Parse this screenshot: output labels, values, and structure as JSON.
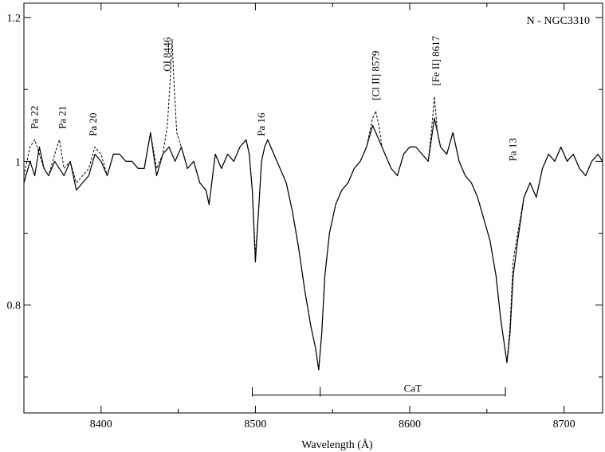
{
  "chart_data": {
    "type": "line",
    "title": "",
    "panel_label": "N - NGC3310",
    "xlabel": "Wavelength  (Å)",
    "ylabel": "",
    "xlim": [
      8350,
      8725
    ],
    "ylim": [
      0.65,
      1.22
    ],
    "x_ticks": [
      8400,
      8500,
      8600,
      8700
    ],
    "y_ticks": [
      {
        "value": 0.8,
        "label": "0.8"
      },
      {
        "value": 1.0,
        "label": "1"
      },
      {
        "value": 1.2,
        "label": "1.2"
      }
    ],
    "grid": false,
    "series": [
      {
        "style": "solid",
        "x": [
          8350,
          8354,
          8357,
          8360,
          8363,
          8366,
          8370,
          8373,
          8376,
          8380,
          8384,
          8388,
          8392,
          8396,
          8400,
          8404,
          8408,
          8412,
          8416,
          8420,
          8424,
          8428,
          8432,
          8436,
          8440,
          8444,
          8448,
          8452,
          8456,
          8460,
          8464,
          8468,
          8470,
          8474,
          8478,
          8482,
          8486,
          8490,
          8494,
          8496,
          8498,
          8500,
          8502,
          8504,
          8506,
          8508,
          8512,
          8516,
          8520,
          8524,
          8528,
          8532,
          8536,
          8539,
          8541,
          8543,
          8545,
          8548,
          8552,
          8556,
          8560,
          8564,
          8568,
          8572,
          8576,
          8580,
          8584,
          8588,
          8592,
          8596,
          8600,
          8604,
          8608,
          8612,
          8616,
          8620,
          8624,
          8628,
          8632,
          8636,
          8640,
          8644,
          8648,
          8652,
          8656,
          8659,
          8661,
          8663,
          8665,
          8667,
          8670,
          8674,
          8678,
          8682,
          8686,
          8690,
          8694,
          8698,
          8702,
          8706,
          8710,
          8714,
          8718,
          8722,
          8725
        ],
        "y": [
          0.97,
          1.0,
          0.98,
          1.02,
          0.99,
          0.98,
          1.0,
          0.99,
          0.98,
          1.0,
          0.96,
          0.97,
          0.98,
          1.01,
          1.0,
          0.98,
          1.01,
          1.01,
          1.0,
          1.0,
          0.99,
          0.99,
          1.04,
          0.98,
          1.01,
          1.02,
          1.0,
          1.02,
          0.99,
          1.0,
          0.97,
          0.96,
          0.94,
          1.01,
          0.99,
          1.01,
          1.0,
          1.02,
          1.03,
          1.01,
          0.96,
          0.86,
          0.93,
          1.0,
          1.02,
          1.03,
          1.01,
          0.99,
          0.97,
          0.93,
          0.88,
          0.82,
          0.77,
          0.74,
          0.71,
          0.76,
          0.84,
          0.9,
          0.94,
          0.96,
          0.97,
          0.99,
          1.0,
          1.02,
          1.05,
          1.03,
          1.01,
          0.99,
          0.98,
          1.01,
          1.02,
          1.02,
          1.01,
          1.0,
          1.06,
          1.02,
          1.01,
          1.04,
          1.0,
          0.98,
          0.97,
          0.95,
          0.92,
          0.89,
          0.84,
          0.78,
          0.75,
          0.72,
          0.76,
          0.84,
          0.89,
          0.95,
          0.97,
          0.95,
          0.99,
          1.01,
          1.0,
          1.02,
          1.0,
          1.01,
          0.99,
          0.98,
          1.0,
          1.01,
          1.0
        ]
      },
      {
        "style": "dashed",
        "x": [
          8350,
          8354,
          8357,
          8360,
          8363,
          8366,
          8370,
          8373,
          8376,
          8380,
          8384,
          8388,
          8392,
          8396,
          8400,
          8404,
          8408,
          8412,
          8416,
          8420,
          8424,
          8428,
          8432,
          8436,
          8440,
          8443,
          8445,
          8446,
          8447,
          8449,
          8452,
          8456,
          8460,
          8464,
          8468,
          8470,
          8474,
          8478,
          8482,
          8486,
          8490,
          8494,
          8496,
          8498,
          8500,
          8502,
          8504,
          8506,
          8508,
          8512,
          8516,
          8520,
          8524,
          8528,
          8532,
          8536,
          8539,
          8541,
          8543,
          8545,
          8548,
          8552,
          8556,
          8560,
          8564,
          8568,
          8572,
          8576,
          8578,
          8580,
          8582,
          8584,
          8588,
          8592,
          8596,
          8600,
          8604,
          8608,
          8612,
          8614,
          8616,
          8618,
          8620,
          8624,
          8628,
          8632,
          8636,
          8640,
          8644,
          8648,
          8652,
          8656,
          8659,
          8661,
          8663,
          8665,
          8667,
          8670,
          8674,
          8678,
          8682,
          8686,
          8690,
          8694,
          8698,
          8702,
          8706,
          8710,
          8714,
          8718,
          8722,
          8725
        ],
        "y": [
          0.98,
          1.02,
          1.03,
          1.01,
          0.99,
          0.98,
          1.01,
          1.03,
          0.99,
          1.0,
          0.97,
          0.98,
          0.99,
          1.02,
          1.01,
          0.98,
          1.01,
          1.01,
          1.0,
          1.0,
          0.99,
          0.99,
          1.04,
          0.99,
          1.01,
          1.05,
          1.12,
          1.17,
          1.12,
          1.04,
          1.02,
          0.99,
          1.0,
          0.97,
          0.96,
          0.94,
          1.01,
          0.99,
          1.01,
          1.0,
          1.02,
          1.03,
          1.01,
          0.96,
          0.87,
          0.93,
          1.0,
          1.02,
          1.03,
          1.01,
          0.99,
          0.97,
          0.93,
          0.88,
          0.82,
          0.77,
          0.74,
          0.71,
          0.76,
          0.84,
          0.9,
          0.94,
          0.96,
          0.97,
          0.99,
          1.0,
          1.02,
          1.06,
          1.07,
          1.05,
          1.02,
          1.01,
          0.99,
          0.98,
          1.01,
          1.02,
          1.02,
          1.01,
          1.0,
          1.04,
          1.09,
          1.04,
          1.02,
          1.01,
          1.04,
          1.0,
          0.98,
          0.97,
          0.95,
          0.92,
          0.89,
          0.84,
          0.78,
          0.75,
          0.72,
          0.77,
          0.86,
          0.9,
          0.95,
          0.97,
          0.95,
          0.99,
          1.01,
          1.0,
          1.02,
          1.0,
          1.01,
          0.99,
          0.98,
          1.0,
          1.01,
          1.0
        ]
      }
    ],
    "annotations": [
      {
        "text": "Pa 22",
        "x": 8357,
        "y": 1.045,
        "rotate": true
      },
      {
        "text": "Pa 21",
        "x": 8375,
        "y": 1.045,
        "rotate": true
      },
      {
        "text": "Pa 20",
        "x": 8395,
        "y": 1.035,
        "rotate": true
      },
      {
        "text": "OI 8446",
        "x": 8443,
        "y": 1.125,
        "rotate": true
      },
      {
        "text": "Pa 16",
        "x": 8504,
        "y": 1.035,
        "rotate": true
      },
      {
        "text": "[Cl II] 8579",
        "x": 8578,
        "y": 1.085,
        "rotate": true
      },
      {
        "text": "[Fe II] 8617",
        "x": 8617,
        "y": 1.105,
        "rotate": true
      },
      {
        "text": "Pa 13",
        "x": 8667,
        "y": 1.0,
        "rotate": true
      }
    ],
    "cat_bracket": {
      "label": "CaT",
      "x": [
        8498,
        8542,
        8662
      ],
      "y": 0.675
    }
  }
}
